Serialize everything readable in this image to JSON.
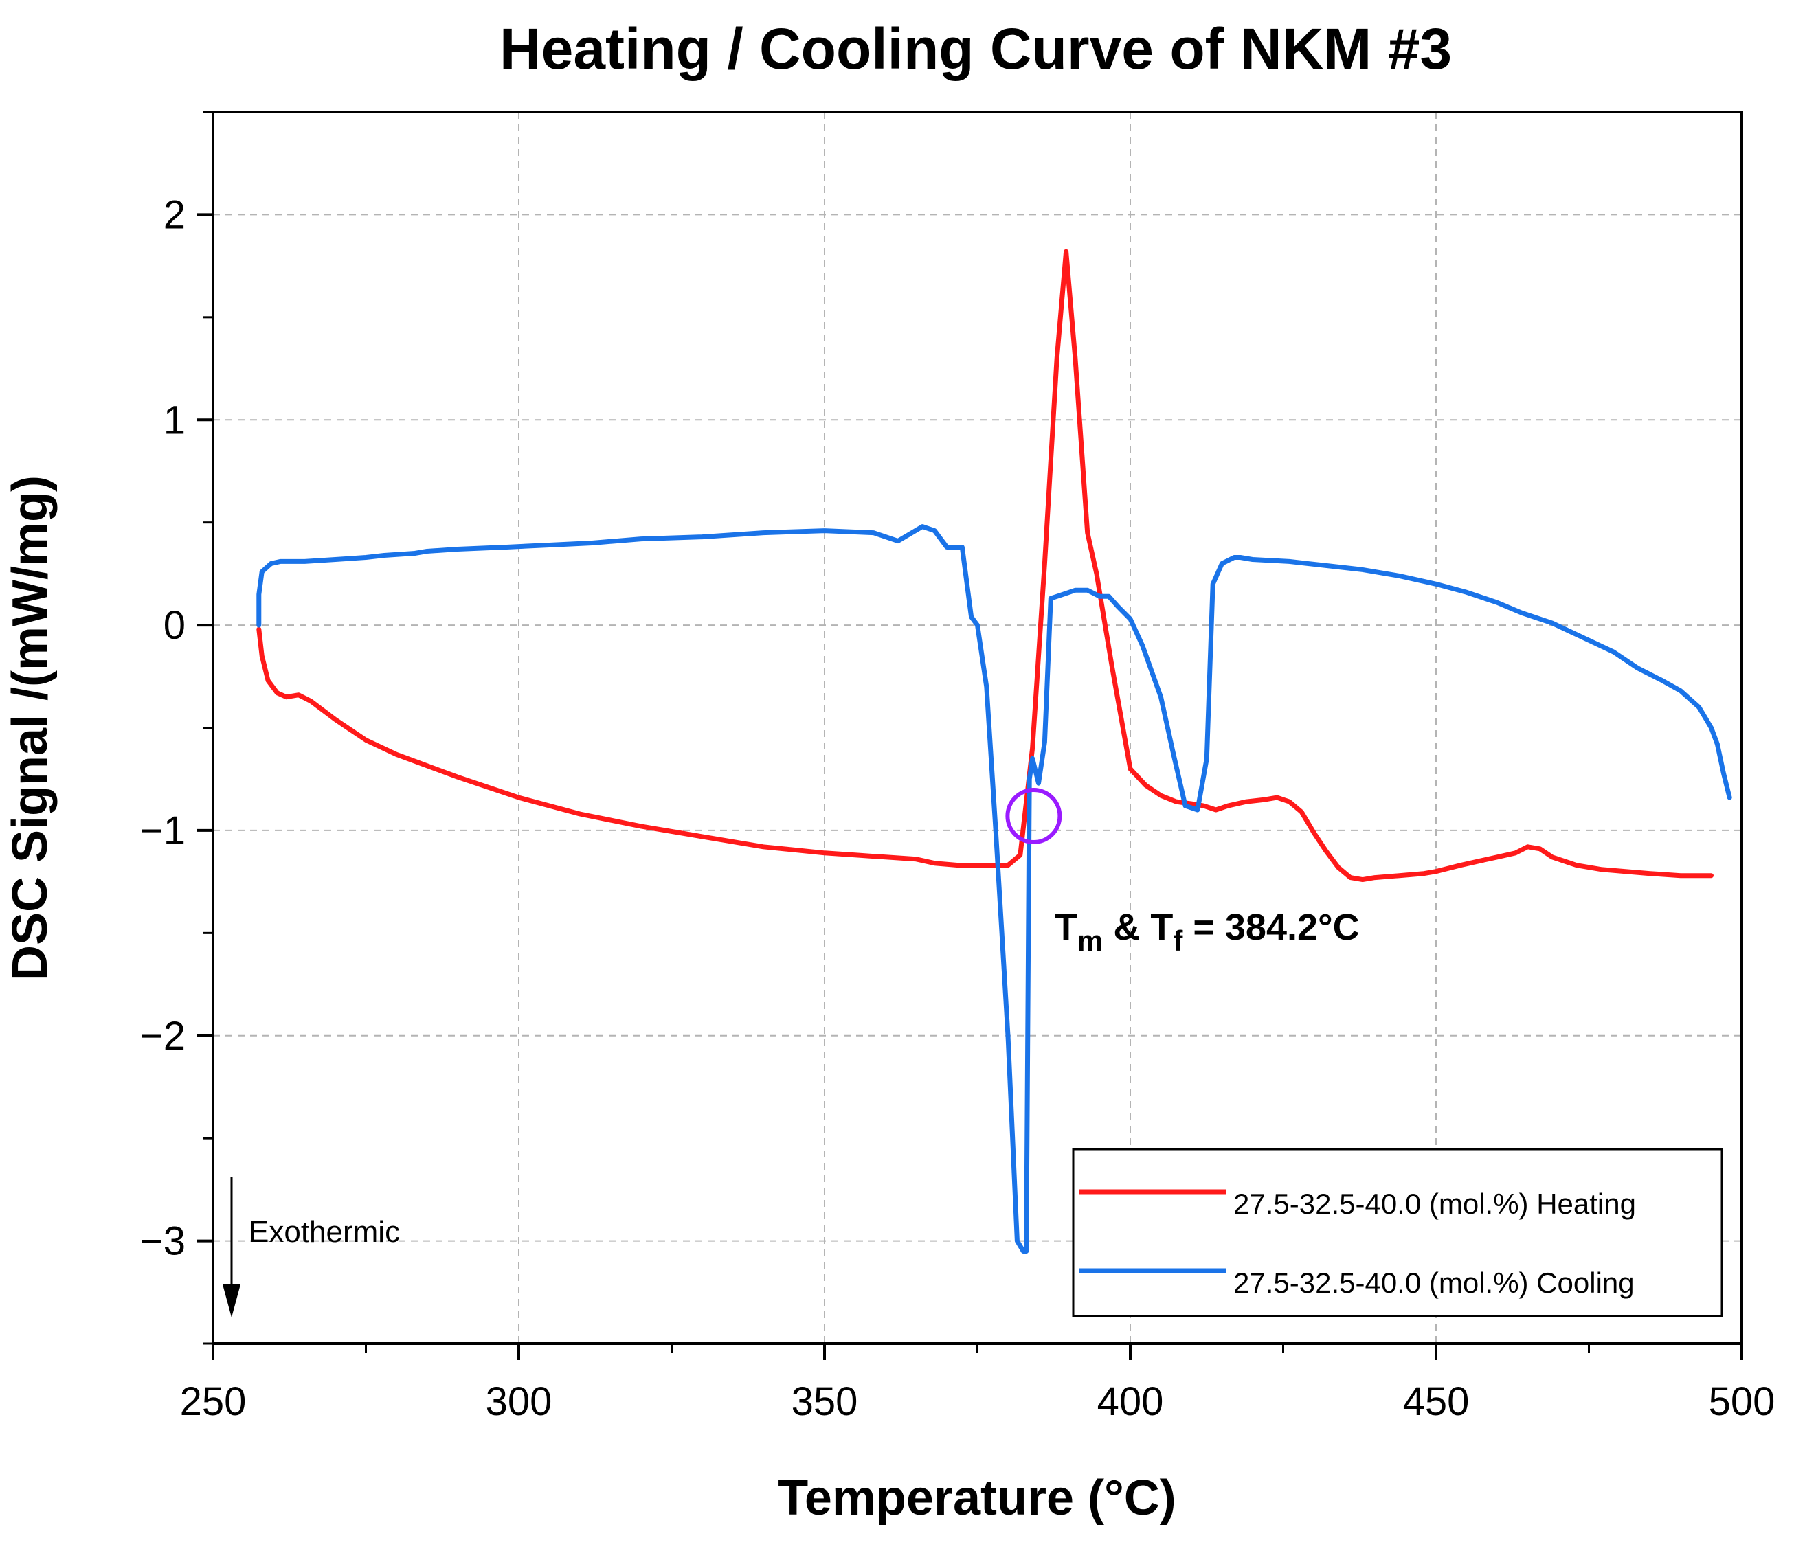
{
  "chart_data": {
    "type": "line",
    "title": "Heating / Cooling Curve of NKM #3",
    "xlabel": "Temperature (°C)",
    "ylabel": "DSC Signal /(mW/mg)",
    "xlim": [
      250,
      500
    ],
    "ylim": [
      -3.5,
      2.5
    ],
    "grid": true,
    "x_ticks": [
      250,
      300,
      350,
      400,
      450,
      500
    ],
    "x_tick_labels": [
      "250",
      "300",
      "350",
      "400",
      "450",
      "500"
    ],
    "y_ticks": [
      2,
      1,
      0,
      -1,
      -2,
      -3
    ],
    "y_tick_labels": [
      "2",
      "1",
      "0",
      "−1",
      "−2",
      "−3"
    ],
    "legend_position": "bottom-right",
    "series": [
      {
        "name": "27.5-32.5-40.0 (mol.%) Heating",
        "color": "#ff1a1a",
        "x": [
          257.5,
          258.0,
          259.0,
          260.5,
          262.0,
          264.0,
          266.0,
          270.0,
          275.0,
          280.0,
          290.0,
          300.0,
          310.0,
          320.0,
          330.0,
          340.0,
          350.0,
          355.0,
          360.0,
          365.0,
          368.0,
          372.0,
          376.0,
          380.0,
          382.0,
          384.0,
          386.0,
          388.0,
          389.5,
          391.0,
          393.0,
          394.5,
          397.0,
          400.0,
          402.5,
          405.0,
          407.5,
          410.0,
          412.0,
          414.0,
          416.0,
          419.0,
          422.0,
          424.0,
          426.0,
          428.0,
          430.0,
          432.0,
          434.0,
          436.0,
          438.0,
          440.0,
          444.0,
          448.0,
          450.0,
          454.0,
          457.0,
          460.0,
          463.0,
          465.0,
          467.0,
          469.0,
          473.0,
          477.0,
          481.0,
          485.0,
          490.0,
          495.0
        ],
        "y": [
          -0.02,
          -0.15,
          -0.27,
          -0.33,
          -0.35,
          -0.34,
          -0.37,
          -0.46,
          -0.56,
          -0.63,
          -0.74,
          -0.84,
          -0.92,
          -0.98,
          -1.03,
          -1.08,
          -1.11,
          -1.12,
          -1.13,
          -1.14,
          -1.16,
          -1.17,
          -1.17,
          -1.17,
          -1.12,
          -0.6,
          0.3,
          1.3,
          1.82,
          1.3,
          0.45,
          0.25,
          -0.2,
          -0.7,
          -0.78,
          -0.83,
          -0.86,
          -0.87,
          -0.88,
          -0.9,
          -0.88,
          -0.86,
          -0.85,
          -0.84,
          -0.86,
          -0.91,
          -1.01,
          -1.1,
          -1.18,
          -1.23,
          -1.24,
          -1.23,
          -1.22,
          -1.21,
          -1.2,
          -1.17,
          -1.15,
          -1.13,
          -1.11,
          -1.08,
          -1.09,
          -1.13,
          -1.17,
          -1.19,
          -1.2,
          -1.21,
          -1.22,
          -1.22
        ]
      },
      {
        "name": "27.5-32.5-40.0 (mol.%) Cooling",
        "color": "#1a73e8",
        "x": [
          498.0,
          497.0,
          496.0,
          495.0,
          493.0,
          490.0,
          487.0,
          483.0,
          479.0,
          474.0,
          469.0,
          464.0,
          460.0,
          455.0,
          450.0,
          444.0,
          438.0,
          432.0,
          426.0,
          420.0,
          418.0,
          417.0,
          415.0,
          413.5,
          412.5,
          411.0,
          409.0,
          407.0,
          405.0,
          402.0,
          400.0,
          398.0,
          396.5,
          395.0,
          393.0,
          391.0,
          389.0,
          387.0,
          386.0,
          385.0,
          384.0,
          383.5,
          383.0,
          382.5,
          381.5,
          380.0,
          378.0,
          376.5,
          375.0,
          374.0,
          372.5,
          370.0,
          368.0,
          366.0,
          362.0,
          358.0,
          350.0,
          340.0,
          330.0,
          320.0,
          312.0,
          305.0,
          298.0,
          290.0,
          285.0,
          283.0,
          278.0,
          275.0,
          270.0,
          265.0,
          261.0,
          259.5,
          258.0,
          257.5,
          257.5
        ],
        "y": [
          -0.84,
          -0.72,
          -0.58,
          -0.5,
          -0.4,
          -0.32,
          -0.27,
          -0.21,
          -0.13,
          -0.06,
          0.01,
          0.06,
          0.11,
          0.16,
          0.2,
          0.24,
          0.27,
          0.29,
          0.31,
          0.32,
          0.33,
          0.33,
          0.3,
          0.2,
          -0.65,
          -0.9,
          -0.88,
          -0.62,
          -0.35,
          -0.1,
          0.03,
          0.09,
          0.14,
          0.14,
          0.17,
          0.17,
          0.15,
          0.13,
          -0.57,
          -0.77,
          -0.65,
          -0.75,
          -3.05,
          -3.05,
          -3.0,
          -2.0,
          -1.0,
          -0.3,
          0.0,
          0.04,
          0.38,
          0.38,
          0.46,
          0.48,
          0.41,
          0.45,
          0.46,
          0.45,
          0.43,
          0.42,
          0.4,
          0.39,
          0.38,
          0.37,
          0.36,
          0.35,
          0.34,
          0.33,
          0.32,
          0.31,
          0.31,
          0.3,
          0.26,
          0.15,
          0.0
        ]
      }
    ],
    "annotations": {
      "exothermic_label": "Exothermic",
      "transition_label_t1": "T",
      "transition_label_sub1": "m",
      "transition_label_mid": " & T",
      "transition_label_sub2": "f",
      "transition_label_value": " = 384.2°C",
      "circle_center": [
        384.2,
        -0.93
      ],
      "circle_color": "#9a1bff"
    }
  }
}
